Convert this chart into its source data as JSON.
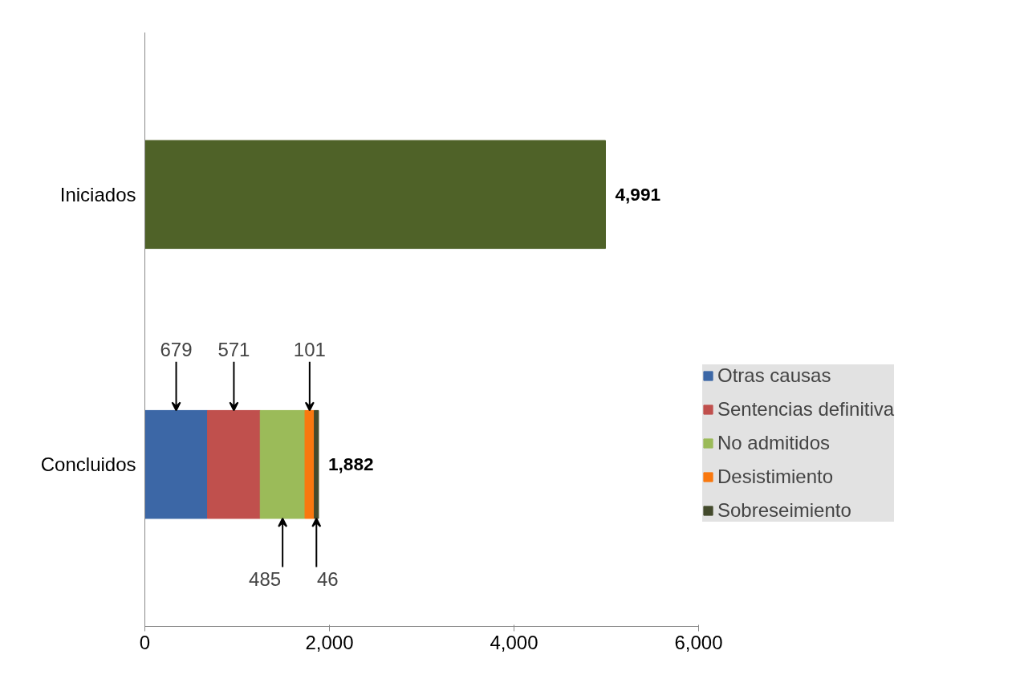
{
  "chart_data": {
    "type": "bar",
    "orientation": "horizontal",
    "stacked": true,
    "categories": [
      "Iniciados",
      "Concluidos"
    ],
    "series": [
      {
        "name": "Otras causas",
        "color": "#3c67a6",
        "values": [
          null,
          679
        ],
        "value_labels": [
          null,
          "679"
        ]
      },
      {
        "name": "Sentencias definitiva",
        "color": "#c0504d",
        "values": [
          null,
          571
        ],
        "value_labels": [
          null,
          "571"
        ]
      },
      {
        "name": "No admitidos",
        "color": "#9bbb59",
        "values": [
          null,
          485
        ],
        "value_labels": [
          null,
          "485"
        ]
      },
      {
        "name": "Desistimiento",
        "color": "#f9780f",
        "values": [
          null,
          101
        ],
        "value_labels": [
          null,
          "101"
        ]
      },
      {
        "name": "Sobreseimiento",
        "color": "#434a2c",
        "values": [
          null,
          46
        ],
        "value_labels": [
          null,
          "46"
        ]
      },
      {
        "color": "#4f6228",
        "values": [
          4991,
          null
        ]
      }
    ],
    "totals": [
      "4,991",
      "1,882"
    ],
    "xlim": [
      0,
      6000
    ],
    "xticks": [
      0,
      {
        "value": 2000,
        "label": "2,000"
      },
      {
        "value": 4000,
        "label": "4,000"
      },
      {
        "value": 6000,
        "label": "6,000"
      }
    ],
    "legend": "right",
    "grid": false
  }
}
